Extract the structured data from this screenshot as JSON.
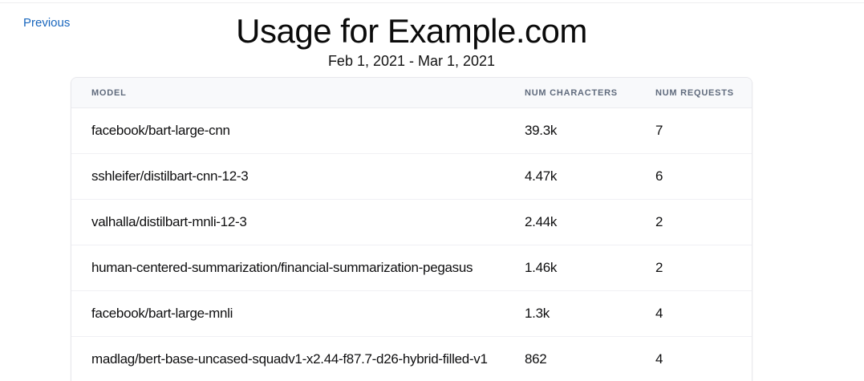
{
  "page": {
    "previous_label": "Previous",
    "title": "Usage for Example.com",
    "date_range": "Feb 1, 2021 - Mar 1, 2021"
  },
  "table": {
    "headers": [
      "MODEL",
      "NUM CHARACTERS",
      "NUM REQUESTS"
    ],
    "rows": [
      {
        "model": "facebook/bart-large-cnn",
        "num_characters": "39.3k",
        "num_requests": "7"
      },
      {
        "model": "sshleifer/distilbart-cnn-12-3",
        "num_characters": "4.47k",
        "num_requests": "6"
      },
      {
        "model": "valhalla/distilbart-mnli-12-3",
        "num_characters": "2.44k",
        "num_requests": "2"
      },
      {
        "model": "human-centered-summarization/financial-summarization-pegasus",
        "num_characters": "1.46k",
        "num_requests": "2"
      },
      {
        "model": "facebook/bart-large-mnli",
        "num_characters": "1.3k",
        "num_requests": "4"
      },
      {
        "model": "madlag/bert-base-uncased-squadv1-x2.44-f87.7-d26-hybrid-filled-v1",
        "num_characters": "862",
        "num_requests": "4"
      }
    ]
  },
  "colors": {
    "link_blue": "#1866bd",
    "header_text_gray": "#606b7d",
    "header_row_bg": "#f8f9fb",
    "row_divider": "#f0f0f4",
    "card_border": "#e7e7ec"
  }
}
